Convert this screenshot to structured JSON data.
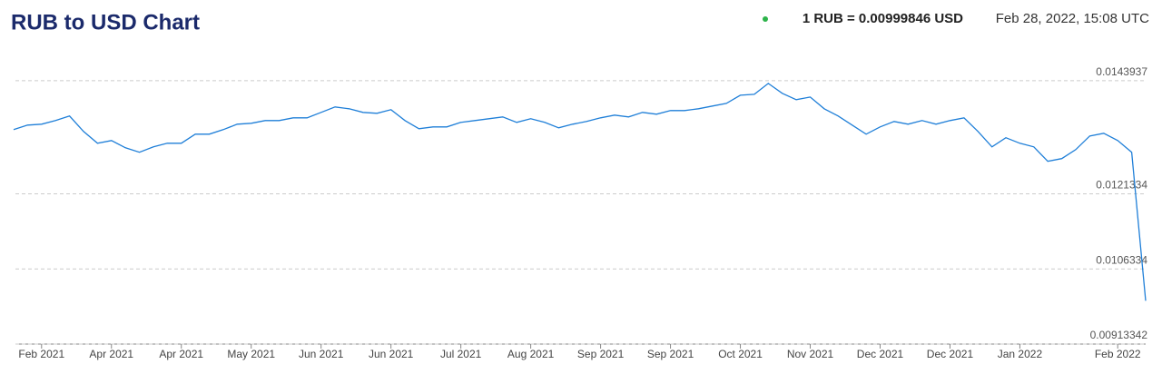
{
  "chart_data": {
    "type": "line",
    "title": "RUB to USD Chart",
    "rate_text": "1 RUB = 0.00999846 USD",
    "timestamp": "Feb 28, 2022, 15:08 UTC",
    "color": "#1f7fd8",
    "categories": [
      null,
      null,
      "Feb 2021",
      null,
      null,
      null,
      null,
      "Apr 2021",
      null,
      null,
      null,
      null,
      "Apr 2021",
      null,
      null,
      null,
      null,
      "May 2021",
      null,
      null,
      null,
      null,
      "Jun 2021",
      null,
      null,
      null,
      null,
      "Jun 2021",
      null,
      null,
      null,
      null,
      "Jul 2021",
      null,
      null,
      null,
      null,
      "Aug 2021",
      null,
      null,
      null,
      null,
      "Sep 2021",
      null,
      null,
      null,
      null,
      "Sep 2021",
      null,
      null,
      null,
      null,
      "Oct 2021",
      null,
      null,
      null,
      null,
      "Nov 2021",
      null,
      null,
      null,
      null,
      "Dec 2021",
      null,
      null,
      null,
      null,
      "Dec 2021",
      null,
      null,
      null,
      null,
      "Jan 2022",
      null,
      null,
      null,
      null,
      null,
      null,
      "Feb 2022",
      null,
      null
    ],
    "values": [
      0.013417,
      0.013507,
      0.013525,
      0.013597,
      0.013688,
      0.01338,
      0.013145,
      0.013199,
      0.013054,
      0.012964,
      0.013072,
      0.013145,
      0.013145,
      0.013326,
      0.013326,
      0.013417,
      0.013525,
      0.013543,
      0.013597,
      0.013597,
      0.013652,
      0.013652,
      0.01376,
      0.013869,
      0.013833,
      0.01376,
      0.013742,
      0.013815,
      0.013597,
      0.013435,
      0.013471,
      0.013471,
      0.013561,
      0.013597,
      0.013634,
      0.01367,
      0.013561,
      0.013634,
      0.013561,
      0.013453,
      0.013525,
      0.013579,
      0.013652,
      0.013706,
      0.01367,
      0.01376,
      0.013724,
      0.013797,
      0.013797,
      0.013833,
      0.013887,
      0.013941,
      0.014104,
      0.014122,
      0.01434,
      0.014141,
      0.014014,
      0.014068,
      0.013833,
      0.013688,
      0.013507,
      0.013326,
      0.013471,
      0.013579,
      0.013525,
      0.013597,
      0.013525,
      0.013597,
      0.013652,
      0.01338,
      0.013072,
      0.013254,
      0.013145,
      0.013072,
      0.012783,
      0.012837,
      0.013018,
      0.01329,
      0.013344,
      0.013199,
      0.012964,
      0.00999846
    ],
    "ylim": [
      0.00913342,
      0.0147
    ],
    "yticks": [
      0.00913342,
      0.0106334,
      0.0121334,
      0.0143937
    ],
    "grid": true
  }
}
